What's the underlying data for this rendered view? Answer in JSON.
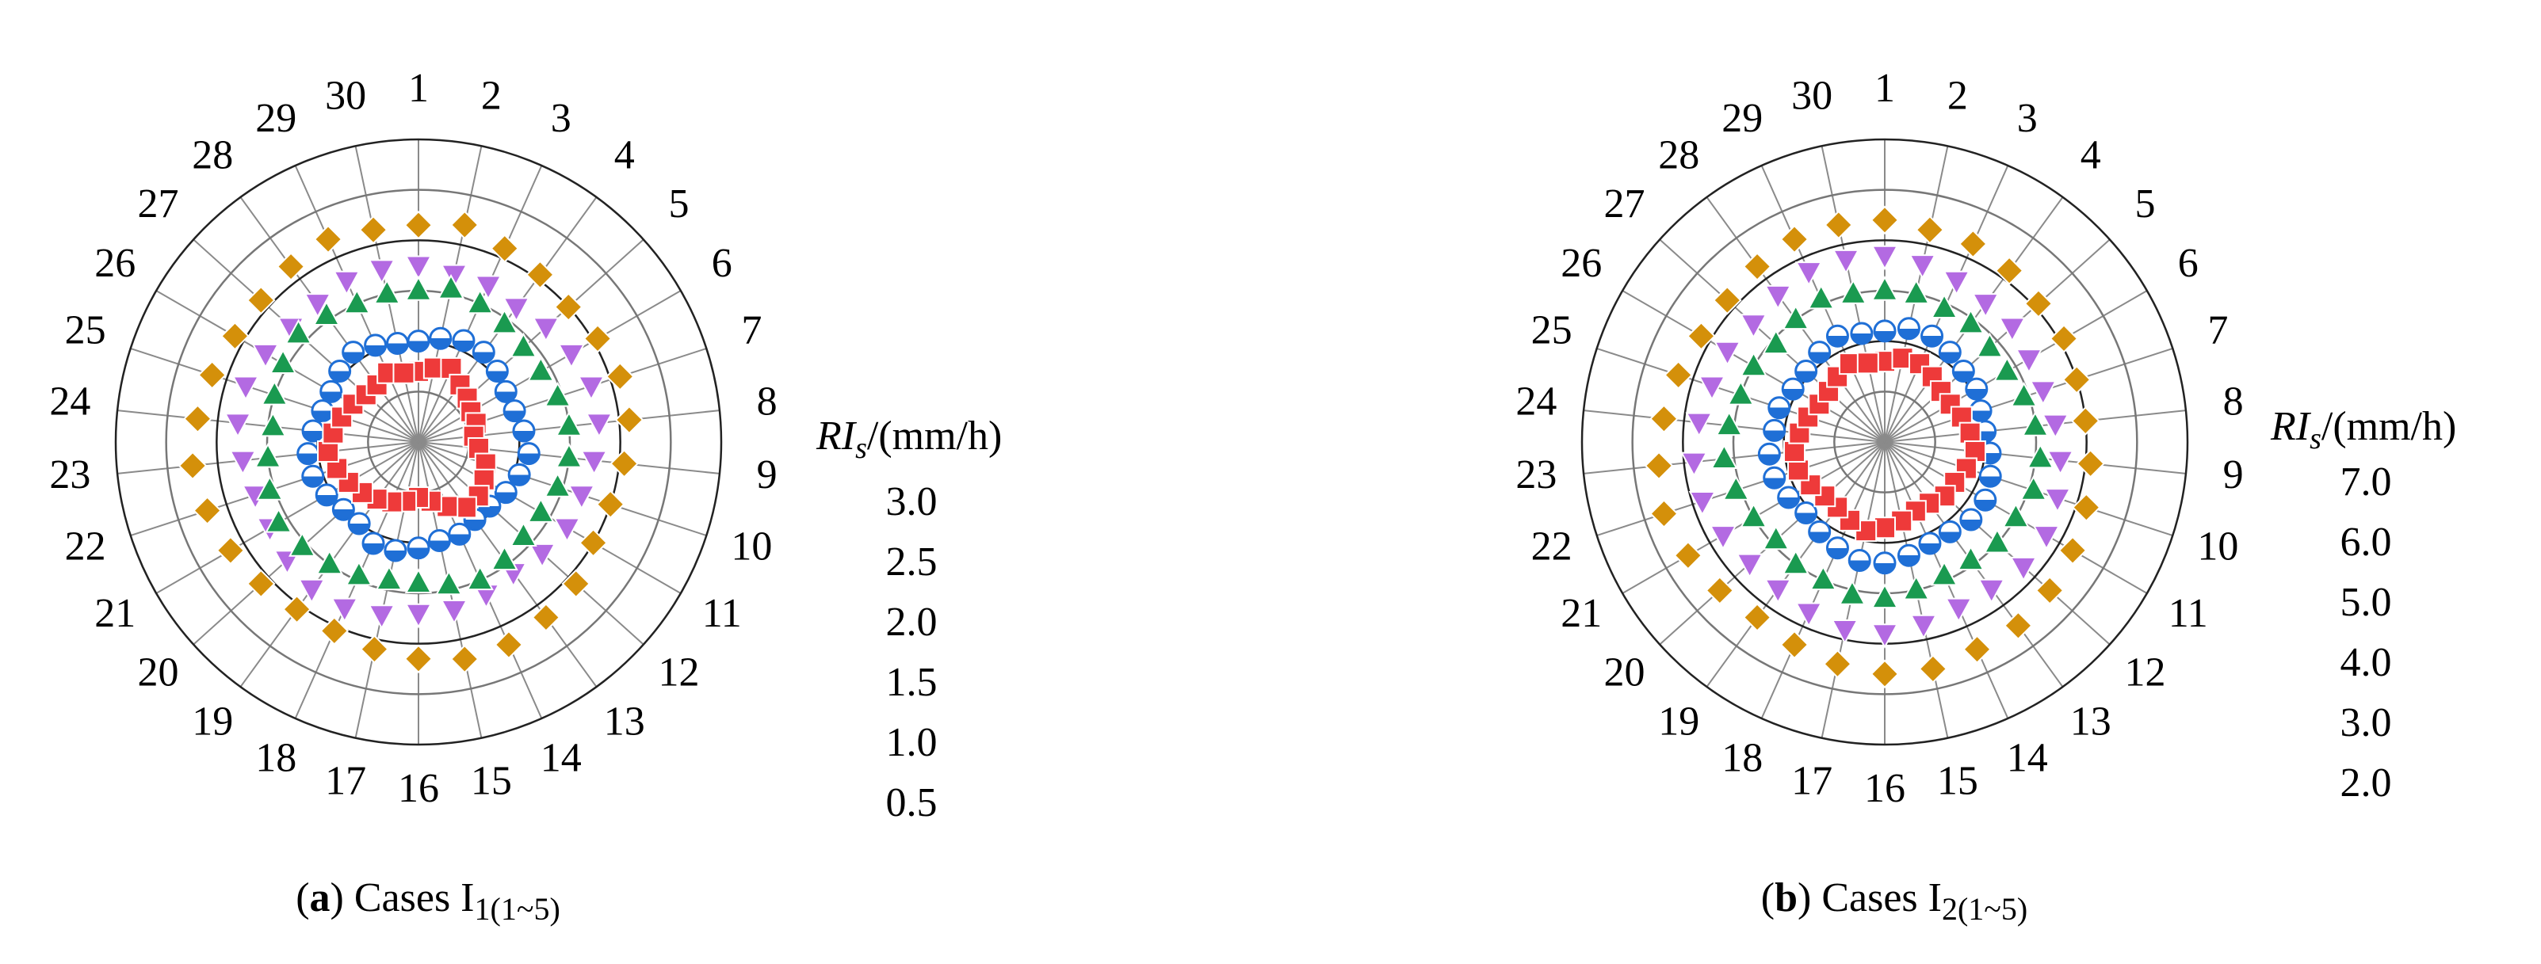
{
  "chart_data": [
    {
      "type": "polar_scatter",
      "categories": [
        "1",
        "2",
        "3",
        "4",
        "5",
        "6",
        "7",
        "8",
        "9",
        "10",
        "11",
        "12",
        "13",
        "14",
        "15",
        "16",
        "17",
        "18",
        "19",
        "20",
        "21",
        "22",
        "23",
        "24",
        "25",
        "26",
        "27",
        "28",
        "29",
        "30"
      ],
      "r_label": {
        "main": "RI",
        "sub": "s",
        "unit": "/(mm/h)"
      },
      "caption": {
        "panel": "a",
        "text": "Cases I",
        "sub": "1(1~5)"
      },
      "rlim": [
        0,
        3.0
      ],
      "rticks": [
        {
          "value": 3.0,
          "label": "3.0"
        },
        {
          "value": 2.5,
          "label": "2.5"
        },
        {
          "value": 2.0,
          "label": "2.0"
        },
        {
          "value": 1.5,
          "label": "1.5"
        },
        {
          "value": 1.0,
          "label": "1.0"
        },
        {
          "value": 0.5,
          "label": "0.5"
        }
      ],
      "series": [
        {
          "color": "#d4900a",
          "marker": "diamond",
          "values": [
            2.15,
            2.2,
            2.1,
            2.05,
            2.0,
            2.05,
            2.1,
            2.1,
            2.05,
            2.0,
            2.0,
            2.1,
            2.15,
            2.2,
            2.2,
            2.15,
            2.1,
            2.05,
            2.05,
            2.1,
            2.15,
            2.2,
            2.25,
            2.2,
            2.15,
            2.1,
            2.1,
            2.15,
            2.2,
            2.15
          ]
        },
        {
          "color": "#b36ae2",
          "marker": "triangle-down",
          "values": [
            1.75,
            1.7,
            1.7,
            1.65,
            1.7,
            1.75,
            1.8,
            1.8,
            1.75,
            1.7,
            1.7,
            1.65,
            1.6,
            1.65,
            1.7,
            1.7,
            1.75,
            1.8,
            1.8,
            1.75,
            1.7,
            1.7,
            1.75,
            1.8,
            1.8,
            1.75,
            1.7,
            1.7,
            1.75,
            1.75
          ]
        },
        {
          "color": "#1a9a50",
          "marker": "triangle-up",
          "values": [
            1.5,
            1.55,
            1.5,
            1.45,
            1.4,
            1.4,
            1.45,
            1.5,
            1.5,
            1.45,
            1.4,
            1.4,
            1.45,
            1.5,
            1.45,
            1.4,
            1.4,
            1.45,
            1.5,
            1.55,
            1.6,
            1.55,
            1.5,
            1.45,
            1.5,
            1.55,
            1.6,
            1.55,
            1.5,
            1.5
          ]
        },
        {
          "color": "#1f6fd6",
          "marker": "circle",
          "values": [
            1.0,
            1.05,
            1.1,
            1.1,
            1.05,
            1.0,
            1.0,
            1.05,
            1.1,
            1.05,
            1.0,
            0.95,
            0.95,
            1.0,
            1.0,
            1.05,
            1.1,
            1.1,
            1.0,
            1.0,
            1.05,
            1.1,
            1.1,
            1.05,
            1.0,
            1.0,
            1.05,
            1.1,
            1.05,
            1.0
          ]
        },
        {
          "color": "#ee3a3a",
          "marker": "square",
          "values": [
            0.7,
            0.75,
            0.8,
            0.7,
            0.65,
            0.6,
            0.6,
            0.55,
            0.6,
            0.7,
            0.75,
            0.8,
            0.8,
            0.7,
            0.6,
            0.55,
            0.6,
            0.65,
            0.7,
            0.75,
            0.8,
            0.85,
            0.9,
            0.85,
            0.8,
            0.75,
            0.7,
            0.7,
            0.75,
            0.7
          ]
        }
      ]
    },
    {
      "type": "polar_scatter",
      "categories": [
        "1",
        "2",
        "3",
        "4",
        "5",
        "6",
        "7",
        "8",
        "9",
        "10",
        "11",
        "12",
        "13",
        "14",
        "15",
        "16",
        "17",
        "18",
        "19",
        "20",
        "21",
        "22",
        "23",
        "24",
        "25",
        "26",
        "27",
        "28",
        "29",
        "30"
      ],
      "r_label": {
        "main": "RI",
        "sub": "s",
        "unit": "/(mm/h)"
      },
      "caption": {
        "panel": "b",
        "text": "Cases I",
        "sub": "2(1~5)"
      },
      "rlim": [
        1.0,
        7.0
      ],
      "rticks": [
        {
          "value": 7.0,
          "label": "7.0"
        },
        {
          "value": 6.0,
          "label": "6.0"
        },
        {
          "value": 5.0,
          "label": "5.0"
        },
        {
          "value": 4.0,
          "label": "4.0"
        },
        {
          "value": 3.0,
          "label": "3.0"
        },
        {
          "value": 2.0,
          "label": "2.0"
        }
      ],
      "series": [
        {
          "color": "#d4900a",
          "marker": "diamond",
          "values": [
            5.4,
            5.3,
            5.3,
            5.2,
            5.1,
            5.1,
            5.0,
            5.0,
            5.1,
            5.2,
            5.3,
            5.4,
            5.5,
            5.5,
            5.6,
            5.6,
            5.5,
            5.4,
            5.3,
            5.4,
            5.5,
            5.6,
            5.5,
            5.4,
            5.3,
            5.2,
            5.2,
            5.3,
            5.4,
            5.4
          ]
        },
        {
          "color": "#b36ae2",
          "marker": "triangle-down",
          "values": [
            4.7,
            4.6,
            4.5,
            4.4,
            4.4,
            4.3,
            4.3,
            4.4,
            4.5,
            4.6,
            4.7,
            4.7,
            4.6,
            4.6,
            4.7,
            4.8,
            4.8,
            4.7,
            4.6,
            4.6,
            4.7,
            4.8,
            4.8,
            4.7,
            4.6,
            4.6,
            4.5,
            4.6,
            4.7,
            4.7
          ]
        },
        {
          "color": "#1a9a50",
          "marker": "triangle-up",
          "values": [
            4.0,
            4.0,
            3.9,
            3.9,
            3.8,
            3.8,
            3.9,
            4.0,
            4.1,
            4.1,
            4.0,
            4.0,
            3.9,
            3.9,
            4.0,
            4.1,
            4.1,
            4.0,
            4.0,
            3.9,
            4.0,
            4.1,
            4.2,
            4.1,
            4.0,
            4.0,
            3.9,
            4.0,
            4.1,
            4.0
          ]
        },
        {
          "color": "#1f6fd6",
          "marker": "circle",
          "values": [
            3.2,
            3.3,
            3.3,
            3.2,
            3.1,
            3.1,
            3.0,
            3.0,
            3.1,
            3.2,
            3.3,
            3.3,
            3.2,
            3.2,
            3.3,
            3.4,
            3.4,
            3.3,
            3.2,
            3.1,
            3.2,
            3.3,
            3.3,
            3.2,
            3.2,
            3.1,
            3.1,
            3.2,
            3.3,
            3.2
          ]
        },
        {
          "color": "#ee3a3a",
          "marker": "square",
          "values": [
            2.6,
            2.7,
            2.7,
            2.6,
            2.5,
            2.5,
            2.6,
            2.7,
            2.8,
            2.7,
            2.6,
            2.6,
            2.5,
            2.5,
            2.6,
            2.7,
            2.8,
            2.7,
            2.6,
            2.6,
            2.7,
            2.8,
            2.8,
            2.7,
            2.6,
            2.5,
            2.5,
            2.6,
            2.7,
            2.6
          ]
        }
      ]
    }
  ]
}
